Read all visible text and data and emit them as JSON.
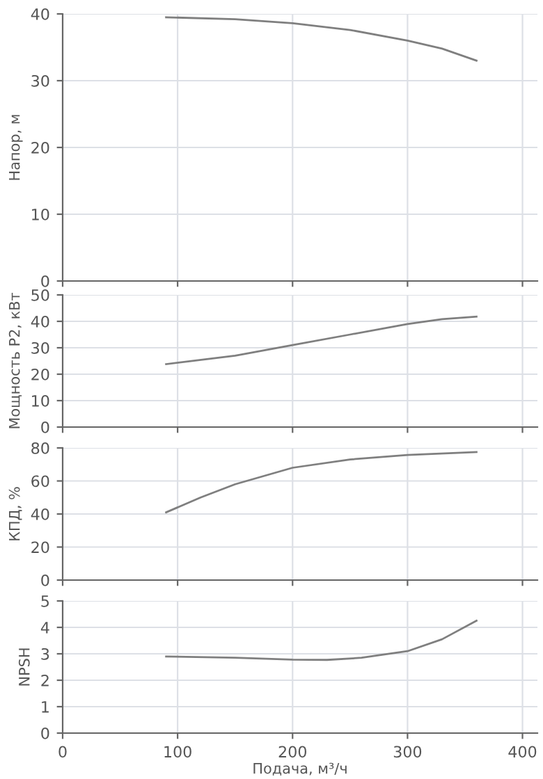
{
  "chart_data": [
    {
      "type": "line",
      "ylabel": "Напор, м",
      "x": [
        90,
        150,
        200,
        250,
        300,
        330,
        360
      ],
      "series": [
        {
          "color": "#7f7f7f",
          "values": [
            39.5,
            39.2,
            38.6,
            37.6,
            36.0,
            34.8,
            33.0
          ]
        }
      ],
      "xlim": [
        0,
        413
      ],
      "ylim": [
        0,
        40
      ],
      "xticks": [
        {
          "value": 0,
          "label": null
        },
        {
          "value": 100,
          "label": null
        },
        {
          "value": 200,
          "label": null
        },
        {
          "value": 300,
          "label": null
        },
        {
          "value": 400,
          "label": null
        }
      ],
      "yticks": [
        0,
        10,
        20,
        30,
        40
      ],
      "grid": true,
      "tick_labels": "y"
    },
    {
      "type": "line",
      "ylabel": "Мощность P2, кВт",
      "x": [
        90,
        150,
        200,
        250,
        300,
        330,
        360
      ],
      "series": [
        {
          "color": "#7f7f7f",
          "values": [
            23.8,
            27.0,
            31.0,
            35.0,
            39.0,
            40.8,
            41.8
          ]
        }
      ],
      "xlim": [
        0,
        413
      ],
      "ylim": [
        0,
        50
      ],
      "xticks": [
        {
          "value": 0,
          "label": null
        },
        {
          "value": 100,
          "label": null
        },
        {
          "value": 200,
          "label": null
        },
        {
          "value": 300,
          "label": null
        },
        {
          "value": 400,
          "label": null
        }
      ],
      "yticks": [
        0,
        10,
        20,
        30,
        40,
        50
      ],
      "grid": true,
      "tick_labels": "y"
    },
    {
      "type": "line",
      "ylabel": "КПД, %",
      "x": [
        90,
        120,
        150,
        200,
        250,
        300,
        360
      ],
      "series": [
        {
          "color": "#7f7f7f",
          "values": [
            41,
            50,
            58,
            68,
            73,
            75.7,
            77.5
          ]
        }
      ],
      "xlim": [
        0,
        413
      ],
      "ylim": [
        0,
        80
      ],
      "xticks": [
        {
          "value": 0,
          "label": null
        },
        {
          "value": 100,
          "label": null
        },
        {
          "value": 200,
          "label": null
        },
        {
          "value": 300,
          "label": null
        },
        {
          "value": 400,
          "label": null
        }
      ],
      "yticks": [
        0,
        20,
        40,
        60,
        80
      ],
      "grid": true,
      "tick_labels": "y"
    },
    {
      "type": "line",
      "ylabel": "NPSH",
      "xlabel": "Подача, м³/ч",
      "x": [
        90,
        150,
        200,
        230,
        260,
        300,
        330,
        360
      ],
      "series": [
        {
          "color": "#7f7f7f",
          "values": [
            2.9,
            2.85,
            2.78,
            2.77,
            2.85,
            3.1,
            3.55,
            4.25
          ]
        }
      ],
      "xlim": [
        0,
        413
      ],
      "ylim": [
        0,
        5
      ],
      "xticks": [
        0,
        100,
        200,
        300,
        400
      ],
      "yticks": [
        0,
        1,
        2,
        3,
        4,
        5
      ],
      "grid": true
    }
  ]
}
